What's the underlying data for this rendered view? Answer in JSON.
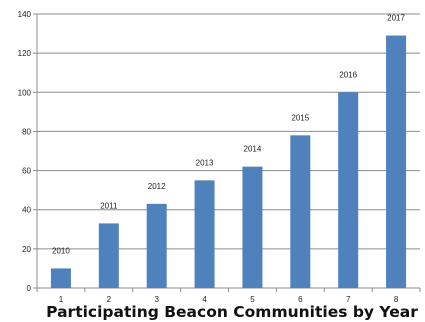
{
  "chart_data": {
    "type": "bar",
    "title": "Participating Beacon Communities by Year",
    "categories": [
      "1",
      "2",
      "3",
      "4",
      "5",
      "6",
      "7",
      "8"
    ],
    "values": [
      10,
      33,
      43,
      55,
      62,
      78,
      100,
      129
    ],
    "data_labels": [
      "2010",
      "2011",
      "2012",
      "2013",
      "2014",
      "2015",
      "2016",
      "2017"
    ],
    "ylim": [
      0,
      140
    ],
    "yticks": [
      0,
      20,
      40,
      60,
      80,
      100,
      120,
      140
    ],
    "xlabel": "",
    "ylabel": "",
    "grid": true,
    "legend": "none"
  },
  "colors": {
    "bar": "#4f81bd",
    "grid": "#8c8c8c",
    "axis": "#8c8c8c"
  }
}
